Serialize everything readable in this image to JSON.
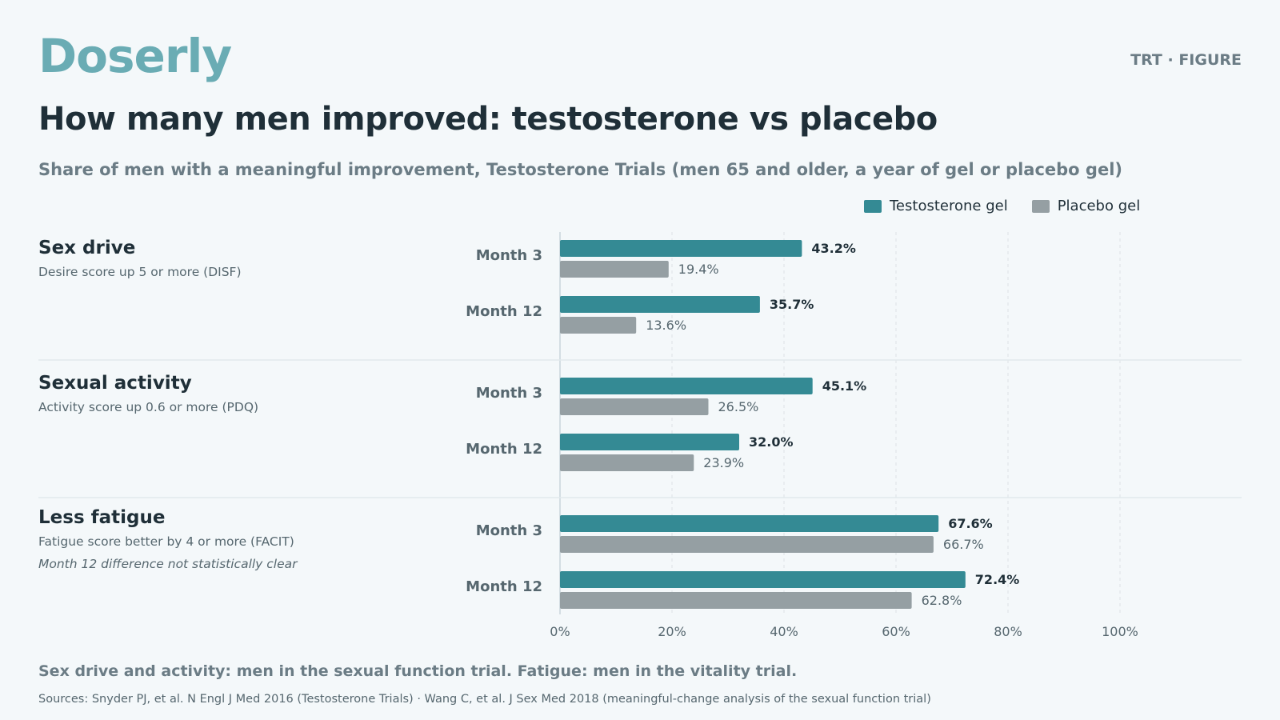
{
  "brand": "Doserly",
  "tag": "TRT · FIGURE",
  "title": "How many men improved: testosterone vs placebo",
  "subtitle": "Share of men with a meaningful improvement, Testosterone Trials (men 65 and older, a year of gel or placebo gel)",
  "legend": {
    "testosterone": "Testosterone gel",
    "placebo": "Placebo gel"
  },
  "groups": [
    {
      "name": "Sex drive",
      "desc": "Desire score up 5 or more (DISF)",
      "note": ""
    },
    {
      "name": "Sexual activity",
      "desc": "Activity score up 0.6 or more (PDQ)",
      "note": ""
    },
    {
      "name": "Less fatigue",
      "desc": "Fatigue score better by 4 or more (FACIT)",
      "note": "Month 12 difference not statistically clear"
    }
  ],
  "footnote": "Sex drive and activity: men in the sexual function trial. Fatigue: men in the vitality trial.",
  "sources": "Sources: Snyder PJ, et al. N Engl J Med 2016 (Testosterone Trials) · Wang C, et al. J Sex Med 2018 (meaningful-change analysis of the sexual function trial)",
  "colors": {
    "testosterone": "#348a94",
    "placebo": "#959fa3",
    "grid": "#dfe6e9",
    "text": "#1f2f38",
    "muted": "#56676f"
  },
  "chart_data": {
    "type": "bar",
    "orientation": "horizontal",
    "xlim": [
      0,
      100
    ],
    "x_ticks": [
      "0%",
      "20%",
      "40%",
      "60%",
      "80%",
      "100%"
    ],
    "groups": [
      {
        "name": "Sex drive",
        "rows": [
          {
            "label": "Month 3",
            "testosterone": 43.2,
            "placebo": 19.4
          },
          {
            "label": "Month 12",
            "testosterone": 35.7,
            "placebo": 13.6
          }
        ]
      },
      {
        "name": "Sexual activity",
        "rows": [
          {
            "label": "Month 3",
            "testosterone": 45.1,
            "placebo": 26.5
          },
          {
            "label": "Month 12",
            "testosterone": 32.0,
            "placebo": 23.9
          }
        ]
      },
      {
        "name": "Less fatigue",
        "rows": [
          {
            "label": "Month 3",
            "testosterone": 67.6,
            "placebo": 66.7
          },
          {
            "label": "Month 12",
            "testosterone": 72.4,
            "placebo": 62.8
          }
        ]
      }
    ],
    "series": [
      {
        "name": "Testosterone gel",
        "key": "testosterone"
      },
      {
        "name": "Placebo gel",
        "key": "placebo"
      }
    ],
    "grid": true,
    "legend_position": "top-right"
  }
}
